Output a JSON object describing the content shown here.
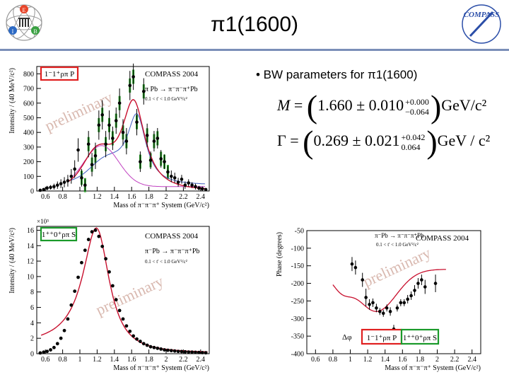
{
  "slide": {
    "title": "π1(1600)",
    "bullet": "• BW parameters for π1(1600)"
  },
  "logos": {
    "left_letters": [
      "E",
      "I",
      "B"
    ],
    "right_text": "COMPASS"
  },
  "formulas": {
    "mass": {
      "symbol": "M",
      "value": "1.660 ± 0.010",
      "plus": "+0.000",
      "minus": "−0.064",
      "unit": "GeV/c²"
    },
    "width": {
      "symbol": "Γ",
      "value": "0.269 ± 0.021",
      "plus": "+0.042",
      "minus": "0.064",
      "unit": "GeV / c²"
    }
  },
  "colors": {
    "red_box": "#e02020",
    "green_box": "#1a9a2a",
    "fit_red": "#c8102e",
    "fit_blue": "#4060c0",
    "fit_magenta": "#c040c0",
    "green_band": "#2ca02c",
    "title_rule": "#7b8fb8"
  },
  "chart_data": [
    {
      "type": "scatter",
      "tag": "1⁻1⁺ρπ P",
      "experiment": "COMPASS 2004",
      "reaction": "π Pb → π⁻π⁻π⁺Pb",
      "tcut": "0.1 < t' < 1.0 GeV²/c²",
      "watermark": "preliminary",
      "xlabel": "Mass of π⁻π⁻π⁺ System (GeV/c²)",
      "ylabel": "Intensity / (40 MeV/c²)",
      "xlim": [
        0.5,
        2.5
      ],
      "ylim": [
        0,
        850
      ],
      "xticks": [
        "0.6",
        "0.8",
        "1",
        "1.2",
        "1.4",
        "1.6",
        "1.8",
        "2",
        "2.2",
        "2.4"
      ],
      "yticks": [
        "0",
        "100",
        "200",
        "300",
        "400",
        "500",
        "600",
        "700",
        "800"
      ],
      "points": {
        "x": [
          0.54,
          0.58,
          0.62,
          0.66,
          0.7,
          0.74,
          0.78,
          0.82,
          0.86,
          0.9,
          0.94,
          0.98,
          1.02,
          1.06,
          1.1,
          1.14,
          1.18,
          1.22,
          1.26,
          1.3,
          1.34,
          1.38,
          1.42,
          1.46,
          1.5,
          1.54,
          1.58,
          1.62,
          1.66,
          1.7,
          1.74,
          1.78,
          1.82,
          1.86,
          1.9,
          1.94,
          1.98,
          2.02,
          2.06,
          2.1,
          2.14,
          2.18,
          2.22,
          2.26,
          2.3,
          2.34,
          2.38,
          2.42,
          2.46
        ],
        "y": [
          5,
          10,
          20,
          25,
          30,
          40,
          50,
          60,
          70,
          100,
          150,
          280,
          90,
          40,
          320,
          180,
          240,
          450,
          520,
          320,
          450,
          360,
          480,
          600,
          400,
          340,
          720,
          780,
          470,
          200,
          680,
          380,
          210,
          340,
          360,
          220,
          200,
          130,
          100,
          90,
          60,
          80,
          40,
          55,
          40,
          30,
          20,
          15,
          10
        ],
        "err": [
          5,
          8,
          15,
          15,
          20,
          25,
          30,
          35,
          40,
          50,
          60,
          80,
          60,
          40,
          90,
          80,
          90,
          100,
          100,
          90,
          100,
          80,
          90,
          100,
          90,
          90,
          100,
          90,
          90,
          70,
          90,
          80,
          60,
          70,
          70,
          60,
          50,
          40,
          40,
          35,
          30,
          30,
          25,
          25,
          20,
          20,
          15,
          15,
          10
        ]
      }
    },
    {
      "type": "scatter",
      "tag": "1⁺⁺0⁺ρπ S",
      "experiment": "COMPASS 2004",
      "reaction": "π⁻Pb → π⁻π⁻π⁺Pb",
      "tcut": "0.1 < t' < 1.0 GeV²/c²",
      "watermark": "preliminary",
      "scale": "×10³",
      "xlabel": "Mass of π⁻π⁻π⁺ System (GeV/c²)",
      "ylabel": "Intensity / (40 MeV/c²)",
      "xlim": [
        0.5,
        2.5
      ],
      "ylim": [
        0,
        16.5
      ],
      "xticks": [
        "0.6",
        "0.8",
        "1",
        "1.2",
        "1.4",
        "1.6",
        "1.8",
        "2",
        "2.2",
        "2.4"
      ],
      "yticks": [
        "0",
        "2",
        "4",
        "6",
        "8",
        "10",
        "12",
        "14",
        "16"
      ],
      "points": {
        "x": [
          0.54,
          0.58,
          0.62,
          0.66,
          0.7,
          0.74,
          0.78,
          0.82,
          0.86,
          0.9,
          0.94,
          0.98,
          1.02,
          1.06,
          1.1,
          1.14,
          1.18,
          1.22,
          1.26,
          1.3,
          1.34,
          1.38,
          1.42,
          1.46,
          1.5,
          1.54,
          1.58,
          1.62,
          1.66,
          1.7,
          1.74,
          1.78,
          1.82,
          1.86,
          1.9,
          1.94,
          1.98,
          2.02,
          2.06,
          2.1,
          2.14,
          2.18,
          2.22,
          2.26,
          2.3,
          2.34,
          2.38,
          2.42,
          2.46
        ],
        "y": [
          0.1,
          0.2,
          0.3,
          0.5,
          0.8,
          1.3,
          2.0,
          3.0,
          4.5,
          6.3,
          8.1,
          9.9,
          11.8,
          13.4,
          14.8,
          15.8,
          16.0,
          15.2,
          13.9,
          12.3,
          10.6,
          8.8,
          7.0,
          5.6,
          4.5,
          3.6,
          2.9,
          2.3,
          1.9,
          1.6,
          1.3,
          1.1,
          0.9,
          0.8,
          0.7,
          0.6,
          0.5,
          0.45,
          0.4,
          0.35,
          0.3,
          0.28,
          0.25,
          0.22,
          0.2,
          0.18,
          0.16,
          0.14,
          0.12
        ]
      }
    },
    {
      "type": "scatter",
      "tag_left": "1⁻1⁺ρπ P",
      "tag_right": "1⁺⁺0⁺ρπ S",
      "phase_symbol": "Δφ",
      "experiment": "COMPASS 2004",
      "reaction": "π⁻Pb → π⁻π⁻π⁺Pb",
      "tcut": "0.1 < t' < 1.0 GeV²/c²",
      "watermark": "preliminary",
      "xlabel": "Mass of π⁻π⁻π⁺ System (GeV/c²)",
      "ylabel": "Phase (degrees)",
      "xlim": [
        0.5,
        2.5
      ],
      "ylim": [
        -400,
        -50
      ],
      "xticks": [
        "0.6",
        "0.8",
        "1",
        "1.2",
        "1.4",
        "1.6",
        "1.8",
        "2",
        "2.2",
        "2.4"
      ],
      "yticks": [
        "-50",
        "-100",
        "-150",
        "-200",
        "-250",
        "-300",
        "-350",
        "-400"
      ],
      "points": {
        "x": [
          1.02,
          1.06,
          1.14,
          1.18,
          1.22,
          1.26,
          1.3,
          1.34,
          1.38,
          1.42,
          1.46,
          1.5,
          1.54,
          1.58,
          1.62,
          1.66,
          1.7,
          1.74,
          1.78,
          1.82,
          1.86,
          1.98
        ],
        "y": [
          -145,
          -155,
          -190,
          -240,
          -260,
          -255,
          -270,
          -280,
          -285,
          -270,
          -280,
          -330,
          -270,
          -255,
          -255,
          -245,
          -235,
          -220,
          -200,
          -190,
          -210,
          -200
        ],
        "err": [
          20,
          20,
          20,
          25,
          15,
          12,
          12,
          10,
          10,
          10,
          12,
          12,
          10,
          10,
          10,
          12,
          12,
          15,
          15,
          15,
          20,
          25
        ]
      }
    }
  ]
}
